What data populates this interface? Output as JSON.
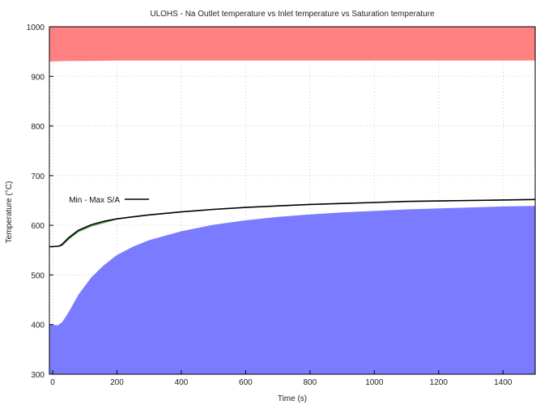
{
  "chart_data": {
    "type": "area",
    "title": "ULOHS - Na Outlet temperature vs Inlet temperature vs Saturation temperature",
    "xlabel": "Time (s)",
    "ylabel": "Temperature (°C)",
    "xlim": [
      -10,
      1500
    ],
    "ylim": [
      300,
      1000
    ],
    "xticks": [
      0,
      200,
      400,
      600,
      800,
      1000,
      1200,
      1400
    ],
    "yticks": [
      300,
      400,
      500,
      600,
      700,
      800,
      900,
      1000
    ],
    "grid": true,
    "legend_position": "middle-left",
    "series": [
      {
        "role": "saturation-band",
        "color": "#ff8080",
        "x": [
          -10,
          0,
          50,
          100,
          200,
          400,
          600,
          800,
          1000,
          1200,
          1400,
          1500
        ],
        "lower": [
          930,
          930,
          931,
          931,
          932,
          932,
          932,
          932,
          932,
          932,
          932,
          932
        ],
        "upper": [
          1000,
          1000,
          1000,
          1000,
          1000,
          1000,
          1000,
          1000,
          1000,
          1000,
          1000,
          1000
        ]
      },
      {
        "role": "inlet-band",
        "color": "#7b7bff",
        "x": [
          -10,
          0,
          15,
          30,
          50,
          80,
          120,
          160,
          200,
          250,
          300,
          400,
          500,
          600,
          700,
          800,
          900,
          1000,
          1100,
          1200,
          1300,
          1400,
          1500
        ],
        "lower": [
          300,
          300,
          300,
          300,
          300,
          300,
          300,
          300,
          300,
          300,
          300,
          300,
          300,
          300,
          300,
          300,
          300,
          300,
          300,
          300,
          300,
          300,
          300
        ],
        "upper": [
          400,
          400,
          398,
          405,
          425,
          460,
          495,
          520,
          540,
          557,
          570,
          588,
          601,
          610,
          617,
          622,
          626,
          629,
          632,
          634,
          636,
          638,
          639
        ]
      },
      {
        "name": "Min - Max S/A",
        "color": "#000000",
        "x": [
          -10,
          0,
          20,
          30,
          50,
          80,
          120,
          160,
          200,
          250,
          300,
          400,
          500,
          600,
          700,
          800,
          900,
          1000,
          1100,
          1200,
          1300,
          1400,
          1500
        ],
        "values": [
          557,
          557,
          558,
          562,
          575,
          590,
          601,
          608,
          613,
          617,
          621,
          627,
          632,
          636,
          639,
          642,
          644,
          646,
          648,
          649,
          650,
          651,
          652
        ]
      }
    ]
  }
}
